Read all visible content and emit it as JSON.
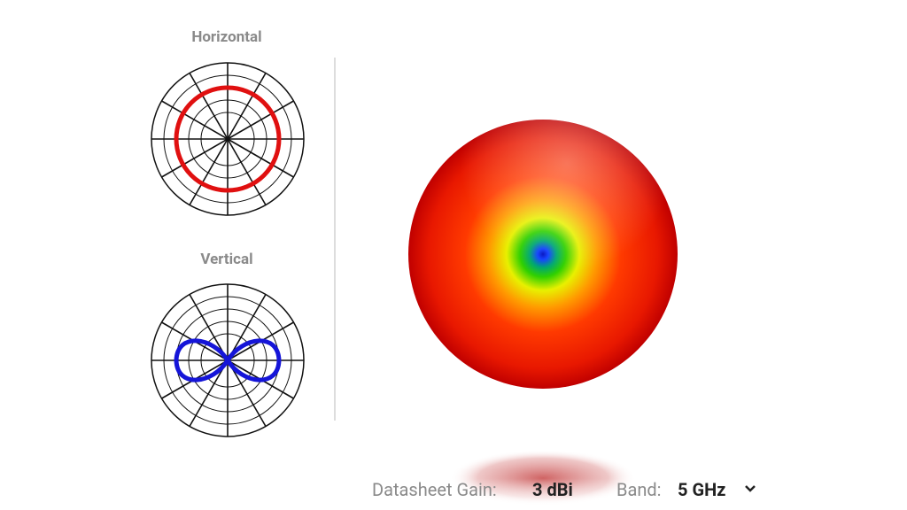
{
  "patterns": {
    "horizontal": {
      "title": "Horizontal"
    },
    "vertical": {
      "title": "Vertical"
    }
  },
  "footer": {
    "gain_label": "Datasheet Gain:",
    "gain_value": "3 dBi",
    "band_label": "Band:",
    "band_value": "5 GHz"
  }
}
